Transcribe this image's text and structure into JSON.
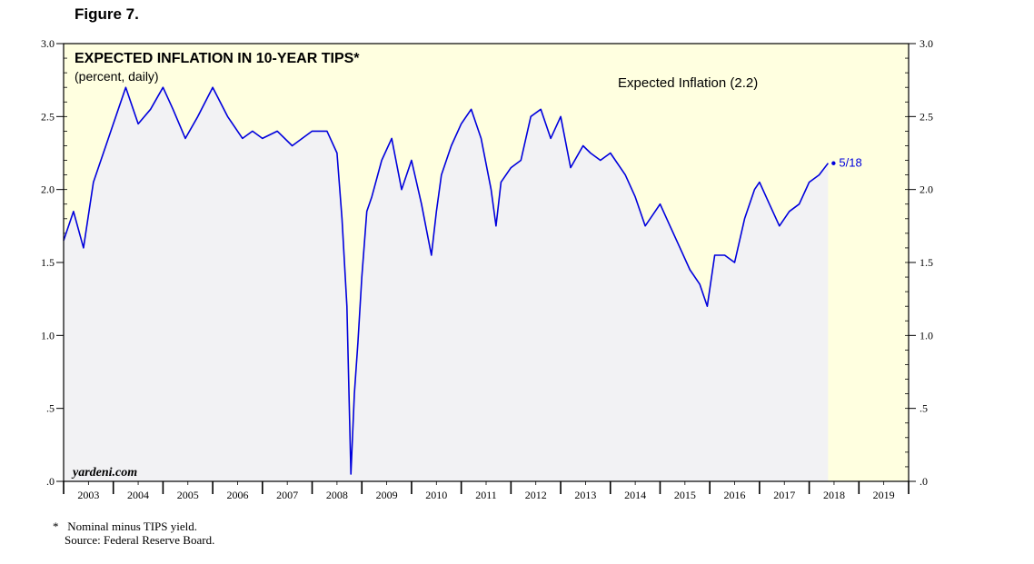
{
  "figure_label": "Figure 7.",
  "chart_data": {
    "type": "line",
    "title": "EXPECTED INFLATION IN 10-YEAR TIPS*",
    "subtitle": "(percent, daily)",
    "legend": {
      "label": "Expected Inflation (2.2)",
      "placement": "top-right"
    },
    "watermark": "yardeni.com",
    "end_label": "5/18",
    "series_color": "#0000dd",
    "background_color": "#ffffe0",
    "fill_color": "#f2f2f4",
    "ylim": [
      0,
      3.0
    ],
    "y_ticks": [
      0,
      0.5,
      1.0,
      1.5,
      2.0,
      2.5,
      3.0
    ],
    "y_tick_labels": [
      ".0",
      ".5",
      "1.0",
      "1.5",
      "2.0",
      "2.5",
      "3.0"
    ],
    "xlim": [
      2003.0,
      2020.0
    ],
    "x_tick_labels": [
      "2003",
      "2004",
      "2005",
      "2006",
      "2007",
      "2008",
      "2009",
      "2010",
      "2011",
      "2012",
      "2013",
      "2014",
      "2015",
      "2016",
      "2017",
      "2018",
      "2019"
    ],
    "x": [
      2003.0,
      2003.2,
      2003.4,
      2003.6,
      2003.85,
      2004.0,
      2004.25,
      2004.5,
      2004.75,
      2005.0,
      2005.2,
      2005.45,
      2005.7,
      2006.0,
      2006.3,
      2006.6,
      2006.8,
      2007.0,
      2007.3,
      2007.6,
      2007.8,
      2008.0,
      2008.3,
      2008.5,
      2008.6,
      2008.7,
      2008.78,
      2008.85,
      2008.92,
      2009.0,
      2009.1,
      2009.2,
      2009.4,
      2009.6,
      2009.8,
      2010.0,
      2010.2,
      2010.4,
      2010.5,
      2010.6,
      2010.8,
      2011.0,
      2011.2,
      2011.4,
      2011.6,
      2011.7,
      2011.8,
      2012.0,
      2012.2,
      2012.4,
      2012.6,
      2012.8,
      2013.0,
      2013.2,
      2013.45,
      2013.6,
      2013.8,
      2014.0,
      2014.3,
      2014.5,
      2014.7,
      2014.9,
      2015.0,
      2015.2,
      2015.4,
      2015.6,
      2015.8,
      2015.95,
      2016.1,
      2016.3,
      2016.5,
      2016.7,
      2016.9,
      2017.0,
      2017.2,
      2017.4,
      2017.6,
      2017.8,
      2018.0,
      2018.2,
      2018.38
    ],
    "values": [
      1.65,
      1.85,
      1.6,
      2.05,
      2.3,
      2.45,
      2.7,
      2.45,
      2.55,
      2.7,
      2.55,
      2.35,
      2.5,
      2.7,
      2.5,
      2.35,
      2.4,
      2.35,
      2.4,
      2.3,
      2.35,
      2.4,
      2.4,
      2.25,
      1.8,
      1.2,
      0.05,
      0.6,
      0.95,
      1.4,
      1.85,
      1.95,
      2.2,
      2.35,
      2.0,
      2.2,
      1.9,
      1.55,
      1.85,
      2.1,
      2.3,
      2.45,
      2.55,
      2.35,
      2.0,
      1.75,
      2.05,
      2.15,
      2.2,
      2.5,
      2.55,
      2.35,
      2.5,
      2.15,
      2.3,
      2.25,
      2.2,
      2.25,
      2.1,
      1.95,
      1.75,
      1.85,
      1.9,
      1.75,
      1.6,
      1.45,
      1.35,
      1.2,
      1.55,
      1.55,
      1.5,
      1.8,
      2.0,
      2.05,
      1.9,
      1.75,
      1.85,
      1.9,
      2.05,
      2.1,
      2.18
    ]
  },
  "footnote_marker": "*",
  "footnote_text": "Nominal minus TIPS yield.",
  "source_text": "Source: Federal Reserve Board."
}
